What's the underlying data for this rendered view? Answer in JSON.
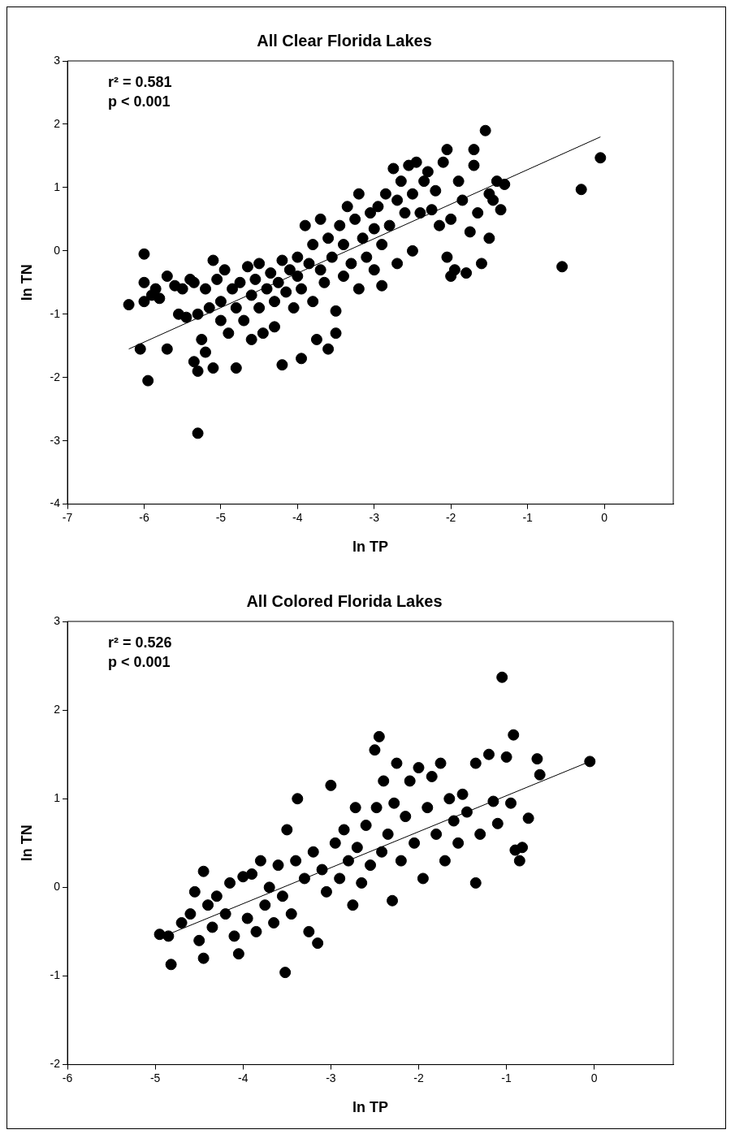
{
  "chart_data": [
    {
      "type": "scatter",
      "title": "All Clear Florida Lakes",
      "xlabel": "ln TP",
      "ylabel": "ln TN",
      "annotations": [
        "r² = 0.581",
        "p < 0.001"
      ],
      "xlim": [
        -7,
        0.9
      ],
      "ylim": [
        -4,
        3
      ],
      "xticks": [
        -7,
        -6,
        -5,
        -4,
        -3,
        -2,
        -1,
        0
      ],
      "yticks": [
        -4,
        -3,
        -2,
        -1,
        0,
        1,
        2,
        3
      ],
      "grid": false,
      "legend": false,
      "series": [
        {
          "type": "scatter",
          "color": "#000000",
          "marker": "circle",
          "x": [
            -6.2,
            -6.0,
            -6.0,
            -6.0,
            -5.95,
            -6.05,
            -5.9,
            -5.85,
            -5.8,
            -5.7,
            -5.7,
            -5.6,
            -5.55,
            -5.5,
            -5.45,
            -5.4,
            -5.35,
            -5.35,
            -5.3,
            -5.3,
            -5.3,
            -5.25,
            -5.2,
            -5.2,
            -5.15,
            -5.1,
            -5.1,
            -5.05,
            -5.0,
            -5.0,
            -4.95,
            -4.9,
            -4.85,
            -4.8,
            -4.8,
            -4.75,
            -4.7,
            -4.65,
            -4.6,
            -4.6,
            -4.55,
            -4.5,
            -4.5,
            -4.45,
            -4.4,
            -4.35,
            -4.3,
            -4.3,
            -4.25,
            -4.2,
            -4.2,
            -4.15,
            -4.1,
            -4.05,
            -4.0,
            -4.0,
            -3.95,
            -3.95,
            -3.9,
            -3.85,
            -3.8,
            -3.8,
            -3.75,
            -3.7,
            -3.7,
            -3.65,
            -3.6,
            -3.6,
            -3.55,
            -3.5,
            -3.5,
            -3.45,
            -3.4,
            -3.4,
            -3.35,
            -3.3,
            -3.25,
            -3.2,
            -3.2,
            -3.15,
            -3.1,
            -3.05,
            -3.0,
            -3.0,
            -2.95,
            -2.9,
            -2.9,
            -2.85,
            -2.8,
            -2.75,
            -2.7,
            -2.7,
            -2.65,
            -2.6,
            -2.55,
            -2.5,
            -2.5,
            -2.45,
            -2.4,
            -2.35,
            -2.3,
            -2.25,
            -2.2,
            -2.15,
            -2.1,
            -2.05,
            -2.05,
            -2.0,
            -2.0,
            -1.95,
            -1.9,
            -1.85,
            -1.8,
            -1.75,
            -1.7,
            -1.7,
            -1.65,
            -1.6,
            -1.55,
            -1.5,
            -1.5,
            -1.45,
            -1.4,
            -1.35,
            -1.3,
            -0.55,
            -0.3,
            -0.05
          ],
          "values": [
            -0.85,
            -0.05,
            -0.5,
            -0.8,
            -2.05,
            -1.55,
            -0.7,
            -0.6,
            -0.75,
            -0.4,
            -1.55,
            -0.55,
            -1.0,
            -0.6,
            -1.05,
            -0.45,
            -0.5,
            -1.75,
            -1.0,
            -1.9,
            -2.88,
            -1.4,
            -0.6,
            -1.6,
            -0.9,
            -0.15,
            -1.85,
            -0.45,
            -0.8,
            -1.1,
            -0.3,
            -1.3,
            -0.6,
            -0.9,
            -1.85,
            -0.5,
            -1.1,
            -0.25,
            -0.7,
            -1.4,
            -0.45,
            -0.2,
            -0.9,
            -1.3,
            -0.6,
            -0.35,
            -0.8,
            -1.2,
            -0.5,
            -0.15,
            -1.8,
            -0.65,
            -0.3,
            -0.9,
            -0.4,
            -0.1,
            -1.7,
            -0.6,
            0.4,
            -0.2,
            0.1,
            -0.8,
            -1.4,
            -0.3,
            0.5,
            -0.5,
            0.2,
            -1.55,
            -0.1,
            -0.95,
            -1.3,
            0.4,
            0.1,
            -0.4,
            0.7,
            -0.2,
            0.5,
            0.9,
            -0.6,
            0.2,
            -0.1,
            0.6,
            0.35,
            -0.3,
            0.7,
            -0.55,
            0.1,
            0.9,
            0.4,
            1.3,
            0.8,
            -0.2,
            1.1,
            0.6,
            1.35,
            0.0,
            0.9,
            1.4,
            0.6,
            1.1,
            1.25,
            0.65,
            0.95,
            0.4,
            1.4,
            1.6,
            -0.1,
            0.5,
            -0.4,
            -0.3,
            1.1,
            0.8,
            -0.35,
            0.3,
            1.6,
            1.35,
            0.6,
            -0.2,
            1.9,
            0.9,
            0.2,
            0.8,
            1.1,
            0.65,
            1.05,
            -0.25,
            0.97,
            1.47
          ]
        },
        {
          "type": "line",
          "color": "#000000",
          "marker": "none",
          "x": [
            -6.2,
            -0.05
          ],
          "values": [
            -1.55,
            1.8
          ]
        }
      ]
    },
    {
      "type": "scatter",
      "title": "All Colored Florida Lakes",
      "xlabel": "ln TP",
      "ylabel": "ln TN",
      "annotations": [
        "r² = 0.526",
        "p < 0.001"
      ],
      "xlim": [
        -6,
        0.9
      ],
      "ylim": [
        -2,
        3
      ],
      "xticks": [
        -6,
        -5,
        -4,
        -3,
        -2,
        -1,
        0
      ],
      "yticks": [
        -2,
        -1,
        0,
        1,
        2,
        3
      ],
      "grid": false,
      "legend": false,
      "series": [
        {
          "type": "scatter",
          "color": "#000000",
          "marker": "circle",
          "x": [
            -4.95,
            -4.85,
            -4.82,
            -4.7,
            -4.6,
            -4.55,
            -4.5,
            -4.45,
            -4.45,
            -4.4,
            -4.35,
            -4.3,
            -4.2,
            -4.15,
            -4.1,
            -4.05,
            -4.0,
            -3.95,
            -3.9,
            -3.85,
            -3.8,
            -3.75,
            -3.7,
            -3.65,
            -3.6,
            -3.55,
            -3.52,
            -3.5,
            -3.45,
            -3.4,
            -3.38,
            -3.3,
            -3.25,
            -3.2,
            -3.15,
            -3.1,
            -3.05,
            -3.0,
            -2.95,
            -2.9,
            -2.85,
            -2.8,
            -2.75,
            -2.72,
            -2.7,
            -2.65,
            -2.6,
            -2.55,
            -2.5,
            -2.48,
            -2.45,
            -2.42,
            -2.4,
            -2.35,
            -2.3,
            -2.28,
            -2.25,
            -2.2,
            -2.15,
            -2.1,
            -2.05,
            -2.0,
            -1.95,
            -1.9,
            -1.85,
            -1.8,
            -1.75,
            -1.7,
            -1.65,
            -1.6,
            -1.55,
            -1.5,
            -1.45,
            -1.35,
            -1.35,
            -1.3,
            -1.2,
            -1.15,
            -1.1,
            -1.05,
            -1.0,
            -0.95,
            -0.92,
            -0.9,
            -0.85,
            -0.82,
            -0.75,
            -0.65,
            -0.62,
            -0.05
          ],
          "values": [
            -0.53,
            -0.55,
            -0.87,
            -0.4,
            -0.3,
            -0.05,
            -0.6,
            0.18,
            -0.8,
            -0.2,
            -0.45,
            -0.1,
            -0.3,
            0.05,
            -0.55,
            -0.75,
            0.12,
            -0.35,
            0.15,
            -0.5,
            0.3,
            -0.2,
            0.0,
            -0.4,
            0.25,
            -0.1,
            -0.96,
            0.65,
            -0.3,
            0.3,
            1.0,
            0.1,
            -0.5,
            0.4,
            -0.63,
            0.2,
            -0.05,
            1.15,
            0.5,
            0.1,
            0.65,
            0.3,
            -0.2,
            0.9,
            0.45,
            0.05,
            0.7,
            0.25,
            1.55,
            0.9,
            1.7,
            0.4,
            1.2,
            0.6,
            -0.15,
            0.95,
            1.4,
            0.3,
            0.8,
            1.2,
            0.5,
            1.35,
            0.1,
            0.9,
            1.25,
            0.6,
            1.4,
            0.3,
            1.0,
            0.75,
            0.5,
            1.05,
            0.85,
            0.05,
            1.4,
            0.6,
            1.5,
            0.97,
            0.72,
            2.37,
            1.47,
            0.95,
            1.72,
            0.42,
            0.3,
            0.45,
            0.78,
            1.45,
            1.27,
            1.42
          ]
        },
        {
          "type": "line",
          "color": "#000000",
          "marker": "none",
          "x": [
            -4.9,
            -0.05
          ],
          "values": [
            -0.55,
            1.42
          ]
        }
      ]
    }
  ]
}
